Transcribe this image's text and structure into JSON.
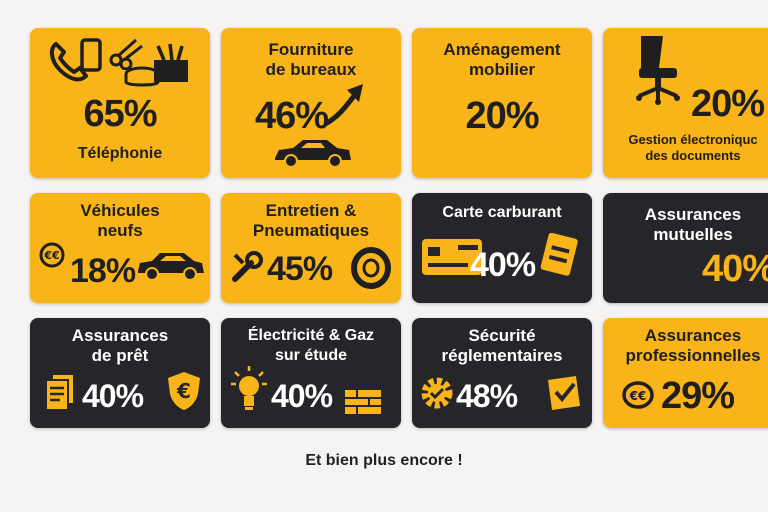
{
  "cards": [
    {
      "title": "",
      "percent": "65%",
      "subtitle": "Téléphonie"
    },
    {
      "title": "Fourniture\nde bureaux",
      "percent": "46%"
    },
    {
      "title": "Aménagement\nmobilier",
      "percent": "20%"
    },
    {
      "title": "",
      "percent": "20%",
      "subtitle": "Gestion électroniquc\ndes documents"
    },
    {
      "title": "Véhicules\nneufs",
      "percent": "18%"
    },
    {
      "title": "Entretien &\nPneumatiques",
      "percent": "45%"
    },
    {
      "title": "Carte carburant",
      "percent": "40%"
    },
    {
      "title": "Assurances\nmutuelles",
      "percent": "40%"
    },
    {
      "title": "Assurances\nde prêt",
      "percent": "40%"
    },
    {
      "title": "Électricité & Gaz\nsur étude",
      "percent": "40%"
    },
    {
      "title": "Sécurité\nréglementaires",
      "percent": "48%"
    },
    {
      "title": "Assurances\nprofessionnelles",
      "percent": "29%"
    }
  ],
  "footer": "Et bien plus encore !",
  "colors": {
    "yellow": "#f8b418",
    "dark": "#26262a",
    "background": "#f6f4f3"
  },
  "icons": [
    "phone-icon",
    "tools-icon",
    "coins-icon",
    "box-icon",
    "car-icon",
    "arrow-up-icon",
    "office-chair-icon",
    "euro-coin-icon",
    "wrench-icon",
    "tire-icon",
    "fuel-card-icon",
    "document-icon",
    "shield-euro-icon",
    "lightbulb-icon",
    "bricks-icon",
    "gear-check-icon",
    "checklist-icon"
  ]
}
